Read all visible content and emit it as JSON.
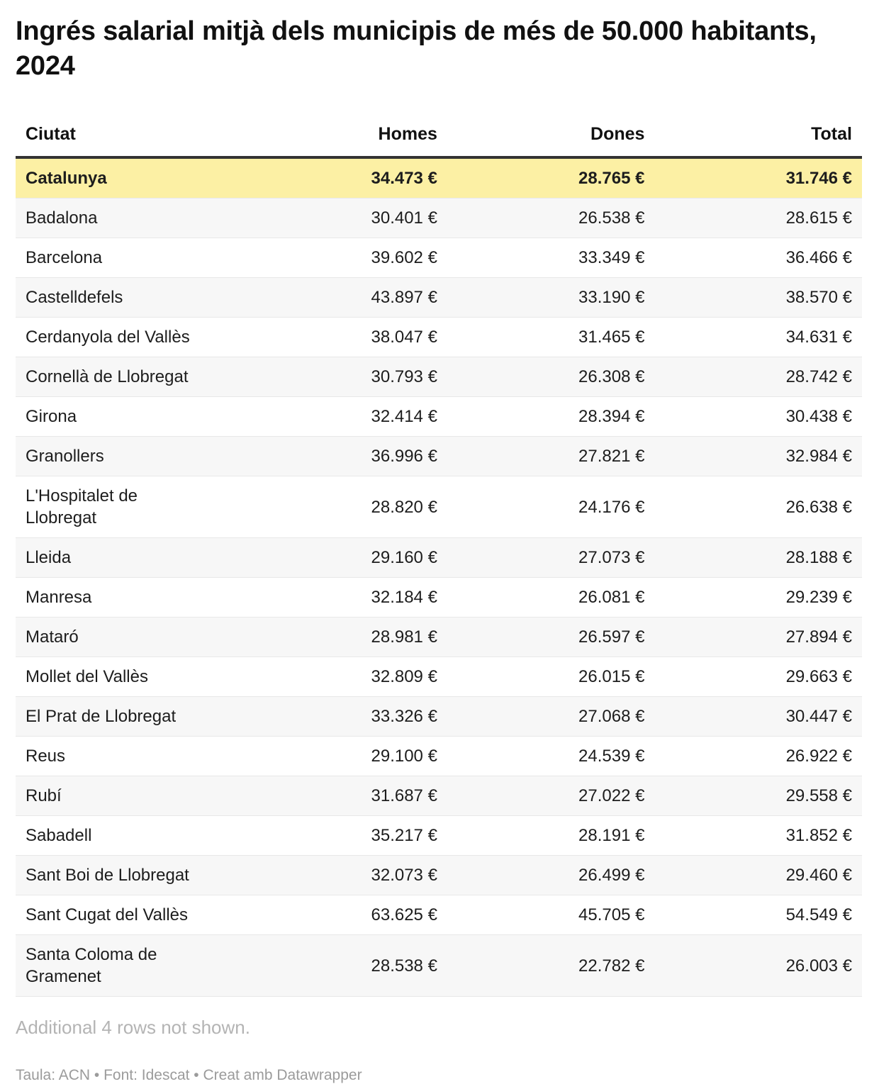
{
  "title": "Ingrés salarial mitjà dels municipis de més de 50.000 habitants, 2024",
  "note": "Additional 4 rows not shown.",
  "credit": "Taula: ACN • Font: Idescat • Creat amb Datawrapper",
  "colors": {
    "highlight_row": "#fcf0a4",
    "shaded_row": "#f7f7f7",
    "header_rule": "#333333",
    "divider": "#e8e8e8",
    "text": "#1d1d1d",
    "muted": "#b4b4b4",
    "credit": "#9b9b9b"
  },
  "chart_data": {
    "type": "table",
    "title": "Ingrés salarial mitjà dels municipis de més de 50.000 habitants, 2024",
    "columns": [
      "Ciutat",
      "Homes",
      "Dones",
      "Total"
    ],
    "unit": "€",
    "rows": [
      {
        "ciutat": "Catalunya",
        "homes": "34.473 €",
        "dones": "28.765 €",
        "total": "31.746 €",
        "homes_num": 34473,
        "dones_num": 28765,
        "total_num": 31746,
        "highlight": true
      },
      {
        "ciutat": "Badalona",
        "homes": "30.401 €",
        "dones": "26.538 €",
        "total": "28.615 €",
        "homes_num": 30401,
        "dones_num": 26538,
        "total_num": 28615,
        "highlight": false
      },
      {
        "ciutat": "Barcelona",
        "homes": "39.602 €",
        "dones": "33.349 €",
        "total": "36.466 €",
        "homes_num": 39602,
        "dones_num": 33349,
        "total_num": 36466,
        "highlight": false
      },
      {
        "ciutat": "Castelldefels",
        "homes": "43.897 €",
        "dones": "33.190 €",
        "total": "38.570 €",
        "homes_num": 43897,
        "dones_num": 33190,
        "total_num": 38570,
        "highlight": false
      },
      {
        "ciutat": "Cerdanyola del Vallès",
        "homes": "38.047 €",
        "dones": "31.465 €",
        "total": "34.631 €",
        "homes_num": 38047,
        "dones_num": 31465,
        "total_num": 34631,
        "highlight": false
      },
      {
        "ciutat": "Cornellà de Llobregat",
        "homes": "30.793 €",
        "dones": "26.308 €",
        "total": "28.742 €",
        "homes_num": 30793,
        "dones_num": 26308,
        "total_num": 28742,
        "highlight": false
      },
      {
        "ciutat": "Girona",
        "homes": "32.414 €",
        "dones": "28.394 €",
        "total": "30.438 €",
        "homes_num": 32414,
        "dones_num": 28394,
        "total_num": 30438,
        "highlight": false
      },
      {
        "ciutat": "Granollers",
        "homes": "36.996 €",
        "dones": "27.821 €",
        "total": "32.984 €",
        "homes_num": 36996,
        "dones_num": 27821,
        "total_num": 32984,
        "highlight": false
      },
      {
        "ciutat": "L'Hospitalet de Llobregat",
        "homes": "28.820 €",
        "dones": "24.176 €",
        "total": "26.638 €",
        "homes_num": 28820,
        "dones_num": 24176,
        "total_num": 26638,
        "highlight": false
      },
      {
        "ciutat": "Lleida",
        "homes": "29.160 €",
        "dones": "27.073 €",
        "total": "28.188 €",
        "homes_num": 29160,
        "dones_num": 27073,
        "total_num": 28188,
        "highlight": false
      },
      {
        "ciutat": "Manresa",
        "homes": "32.184 €",
        "dones": "26.081 €",
        "total": "29.239 €",
        "homes_num": 32184,
        "dones_num": 26081,
        "total_num": 29239,
        "highlight": false
      },
      {
        "ciutat": "Mataró",
        "homes": "28.981 €",
        "dones": "26.597 €",
        "total": "27.894 €",
        "homes_num": 28981,
        "dones_num": 26597,
        "total_num": 27894,
        "highlight": false
      },
      {
        "ciutat": "Mollet del Vallès",
        "homes": "32.809 €",
        "dones": "26.015 €",
        "total": "29.663 €",
        "homes_num": 32809,
        "dones_num": 26015,
        "total_num": 29663,
        "highlight": false
      },
      {
        "ciutat": "El Prat de Llobregat",
        "homes": "33.326 €",
        "dones": "27.068 €",
        "total": "30.447 €",
        "homes_num": 33326,
        "dones_num": 27068,
        "total_num": 30447,
        "highlight": false
      },
      {
        "ciutat": "Reus",
        "homes": "29.100 €",
        "dones": "24.539 €",
        "total": "26.922 €",
        "homes_num": 29100,
        "dones_num": 24539,
        "total_num": 26922,
        "highlight": false
      },
      {
        "ciutat": "Rubí",
        "homes": "31.687 €",
        "dones": "27.022 €",
        "total": "29.558 €",
        "homes_num": 31687,
        "dones_num": 27022,
        "total_num": 29558,
        "highlight": false
      },
      {
        "ciutat": "Sabadell",
        "homes": "35.217 €",
        "dones": "28.191 €",
        "total": "31.852 €",
        "homes_num": 35217,
        "dones_num": 28191,
        "total_num": 31852,
        "highlight": false
      },
      {
        "ciutat": "Sant Boi de Llobregat",
        "homes": "32.073 €",
        "dones": "26.499 €",
        "total": "29.460 €",
        "homes_num": 32073,
        "dones_num": 26499,
        "total_num": 29460,
        "highlight": false
      },
      {
        "ciutat": "Sant Cugat del Vallès",
        "homes": "63.625 €",
        "dones": "45.705 €",
        "total": "54.549 €",
        "homes_num": 63625,
        "dones_num": 45705,
        "total_num": 54549,
        "highlight": false
      },
      {
        "ciutat": "Santa Coloma de Gramenet",
        "homes": "28.538 €",
        "dones": "22.782 €",
        "total": "26.003 €",
        "homes_num": 28538,
        "dones_num": 22782,
        "total_num": 26003,
        "highlight": false
      }
    ]
  }
}
